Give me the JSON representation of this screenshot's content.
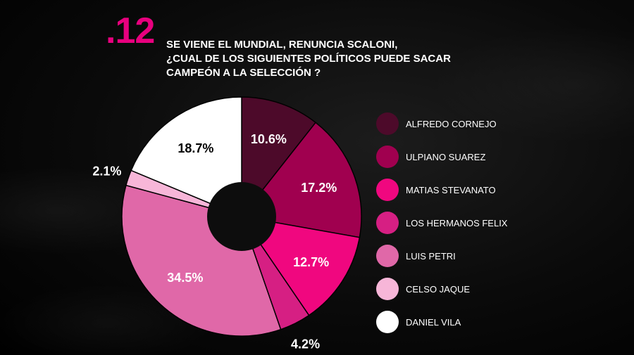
{
  "header": {
    "number": ".12",
    "title_lines": [
      "SE VIENE EL MUNDIAL, RENUNCIA SCALONI,",
      "¿CUAL DE LOS SIGUIENTES POLÍTICOS PUEDE SACAR",
      "CAMPEÓN A LA SELECCIÓN ?"
    ]
  },
  "chart_data": {
    "type": "pie",
    "donut": true,
    "title": "SE VIENE EL MUNDIAL, RENUNCIA SCALONI, ¿CUAL DE LOS SIGUIENTES POLÍTICOS PUEDE SACAR CAMPEÓN A LA SELECCIÓN ?",
    "legend_position": "right",
    "slices": [
      {
        "label": "ALFREDO CORNEJO",
        "value": 10.6,
        "display": "10.6%",
        "color": "#4d0a2a"
      },
      {
        "label": "ULPIANO SUAREZ",
        "value": 17.2,
        "display": "17.2%",
        "color": "#a0004f"
      },
      {
        "label": "MATIAS STEVANATO",
        "value": 12.7,
        "display": "12.7%",
        "color": "#f0077f"
      },
      {
        "label": "LOS HERMANOS FELIX",
        "value": 4.2,
        "display": "4.2%",
        "color": "#d61f83"
      },
      {
        "label": "LUIS PETRI",
        "value": 34.5,
        "display": "34.5%",
        "color": "#e068a8"
      },
      {
        "label": "CELSO JAQUE",
        "value": 2.1,
        "display": "2.1%",
        "color": "#f7b6d8"
      },
      {
        "label": "DANIEL VILA",
        "value": 18.7,
        "display": "18.7%",
        "color": "#ffffff"
      }
    ]
  }
}
